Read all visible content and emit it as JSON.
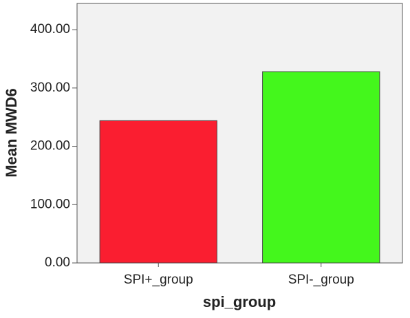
{
  "chart_data": {
    "type": "bar",
    "x_label": "spi_group",
    "y_label": "Mean MWD6",
    "categories": [
      "SPI+_group",
      "SPI-_group"
    ],
    "values": [
      244,
      328
    ],
    "colors": [
      "#fa1e30",
      "#44f71c"
    ],
    "ylim": [
      0,
      445
    ],
    "yticks": [
      {
        "value": 0,
        "label": "0.00"
      },
      {
        "value": 100,
        "label": "100.00"
      },
      {
        "value": 200,
        "label": "200.00"
      },
      {
        "value": 300,
        "label": "300.00"
      },
      {
        "value": 400,
        "label": "400.00"
      }
    ],
    "grid": false
  }
}
